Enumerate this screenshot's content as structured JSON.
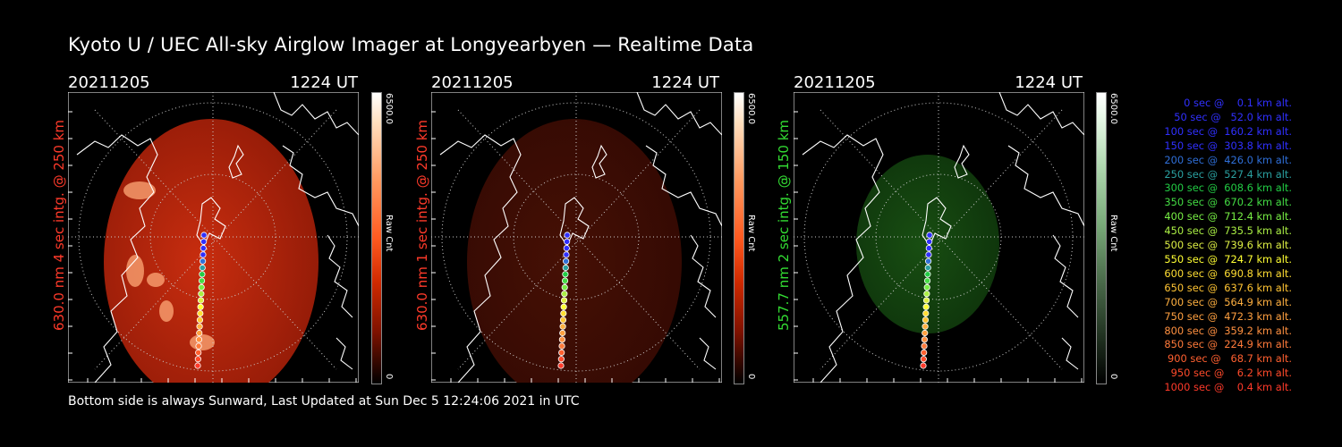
{
  "title": "Kyoto U / UEC All-sky Airglow Imager at Longyearbyen — Realtime Data",
  "footer": "Bottom side is always Sunward, Last Updated at Sun Dec  5 12:24:06 2021 in UTC",
  "colorbar": {
    "max_label": "6500.0",
    "min_label": "0",
    "unit_label": "Raw Cnt"
  },
  "panels": [
    {
      "date": "20211205",
      "time": "1224 UT",
      "ylabel": "630.0 nm 4 sec intg. @ 250 km",
      "ylabel_color": "#ff3a2a",
      "theme": "red",
      "brightness": 1.0
    },
    {
      "date": "20211205",
      "time": "1224 UT",
      "ylabel": "630.0 nm 1 sec intg. @ 250 km",
      "ylabel_color": "#ff3a2a",
      "theme": "red",
      "brightness": 0.35
    },
    {
      "date": "20211205",
      "time": "1224 UT",
      "ylabel": "557.7 nm 2 sec intg. @ 150 km",
      "ylabel_color": "#33dd33",
      "theme": "green",
      "brightness": 0.6
    }
  ],
  "legend": [
    {
      "text": "   0 sec @    0.1 km alt.",
      "color": "#3030ff"
    },
    {
      "text": "  50 sec @   52.0 km alt.",
      "color": "#3030ff"
    },
    {
      "text": " 100 sec @  160.2 km alt.",
      "color": "#3030ff"
    },
    {
      "text": " 150 sec @  303.8 km alt.",
      "color": "#3030ff"
    },
    {
      "text": " 200 sec @  426.0 km alt.",
      "color": "#2f6fd8"
    },
    {
      "text": " 250 sec @  527.4 km alt.",
      "color": "#2aa0a0"
    },
    {
      "text": " 300 sec @  608.6 km alt.",
      "color": "#22cc44"
    },
    {
      "text": " 350 sec @  670.2 km alt.",
      "color": "#44dd44"
    },
    {
      "text": " 400 sec @  712.4 km alt.",
      "color": "#77ee44"
    },
    {
      "text": " 450 sec @  735.5 km alt.",
      "color": "#aaee44"
    },
    {
      "text": " 500 sec @  739.6 km alt.",
      "color": "#ddee44"
    },
    {
      "text": " 550 sec @  724.7 km alt.",
      "color": "#ffff33"
    },
    {
      "text": " 600 sec @  690.8 km alt.",
      "color": "#ffdd33"
    },
    {
      "text": " 650 sec @  637.6 km alt.",
      "color": "#ffc433"
    },
    {
      "text": " 700 sec @  564.9 km alt.",
      "color": "#ffb040"
    },
    {
      "text": " 750 sec @  472.3 km alt.",
      "color": "#ffa040"
    },
    {
      "text": " 800 sec @  359.2 km alt.",
      "color": "#ff9040"
    },
    {
      "text": " 850 sec @  224.9 km alt.",
      "color": "#ff7a3a"
    },
    {
      "text": " 900 sec @   68.7 km alt.",
      "color": "#ff6030"
    },
    {
      "text": " 950 sec @    6.2 km alt.",
      "color": "#ff4a2a"
    },
    {
      "text": "1000 sec @    0.4 km alt.",
      "color": "#ff3a2a"
    }
  ]
}
